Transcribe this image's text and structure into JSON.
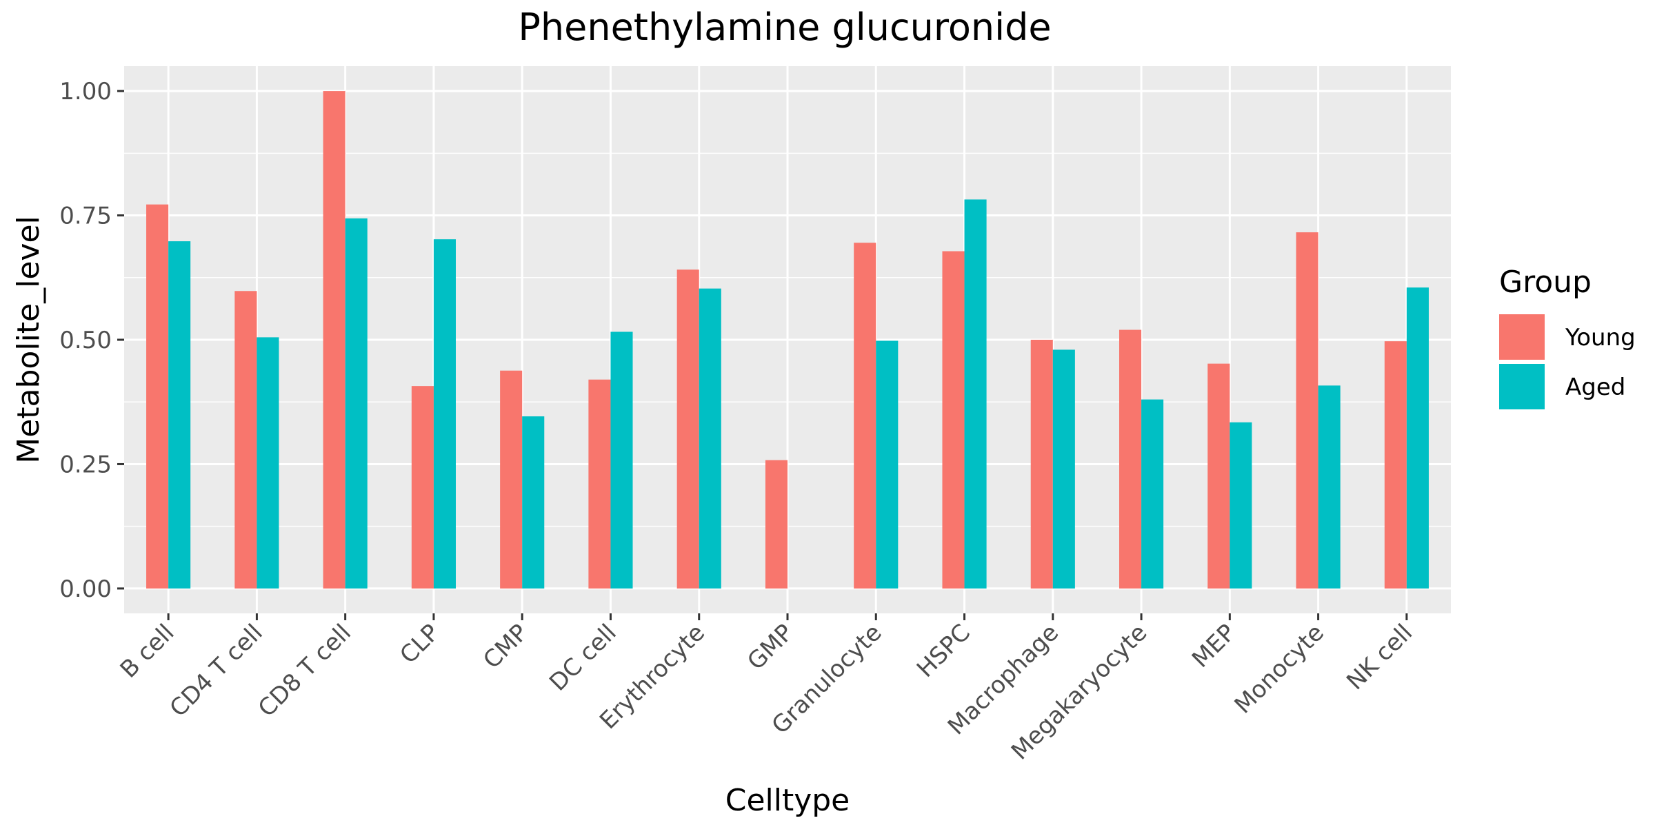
{
  "chart_data": {
    "type": "bar",
    "title": "Phenethylamine glucuronide",
    "xlabel": "Celltype",
    "ylabel": "Metabolite_level",
    "ylim": [
      -0.05,
      1.05
    ],
    "yticks": [
      "0.00",
      "0.25",
      "0.50",
      "0.75",
      "1.00"
    ],
    "grid": true,
    "legend": {
      "title": "Group",
      "position": "right"
    },
    "categories": [
      "B cell",
      "CD4 T cell",
      "CD8 T cell",
      "CLP",
      "CMP",
      "DC cell",
      "Erythrocyte",
      "GMP",
      "Granulocyte",
      "HSPC",
      "Macrophage",
      "Megakaryocyte",
      "MEP",
      "Monocyte",
      "NK cell"
    ],
    "series": [
      {
        "name": "Young",
        "color": "#F8766D",
        "values": [
          0.772,
          0.598,
          1.0,
          0.407,
          0.438,
          0.42,
          0.641,
          0.258,
          0.695,
          0.678,
          0.5,
          0.52,
          0.452,
          0.716,
          0.497
        ]
      },
      {
        "name": "Aged",
        "color": "#00BFC4",
        "values": [
          0.698,
          0.505,
          0.744,
          0.702,
          0.346,
          0.516,
          0.603,
          null,
          0.498,
          0.782,
          0.48,
          0.38,
          0.334,
          0.408,
          0.605
        ]
      }
    ]
  }
}
